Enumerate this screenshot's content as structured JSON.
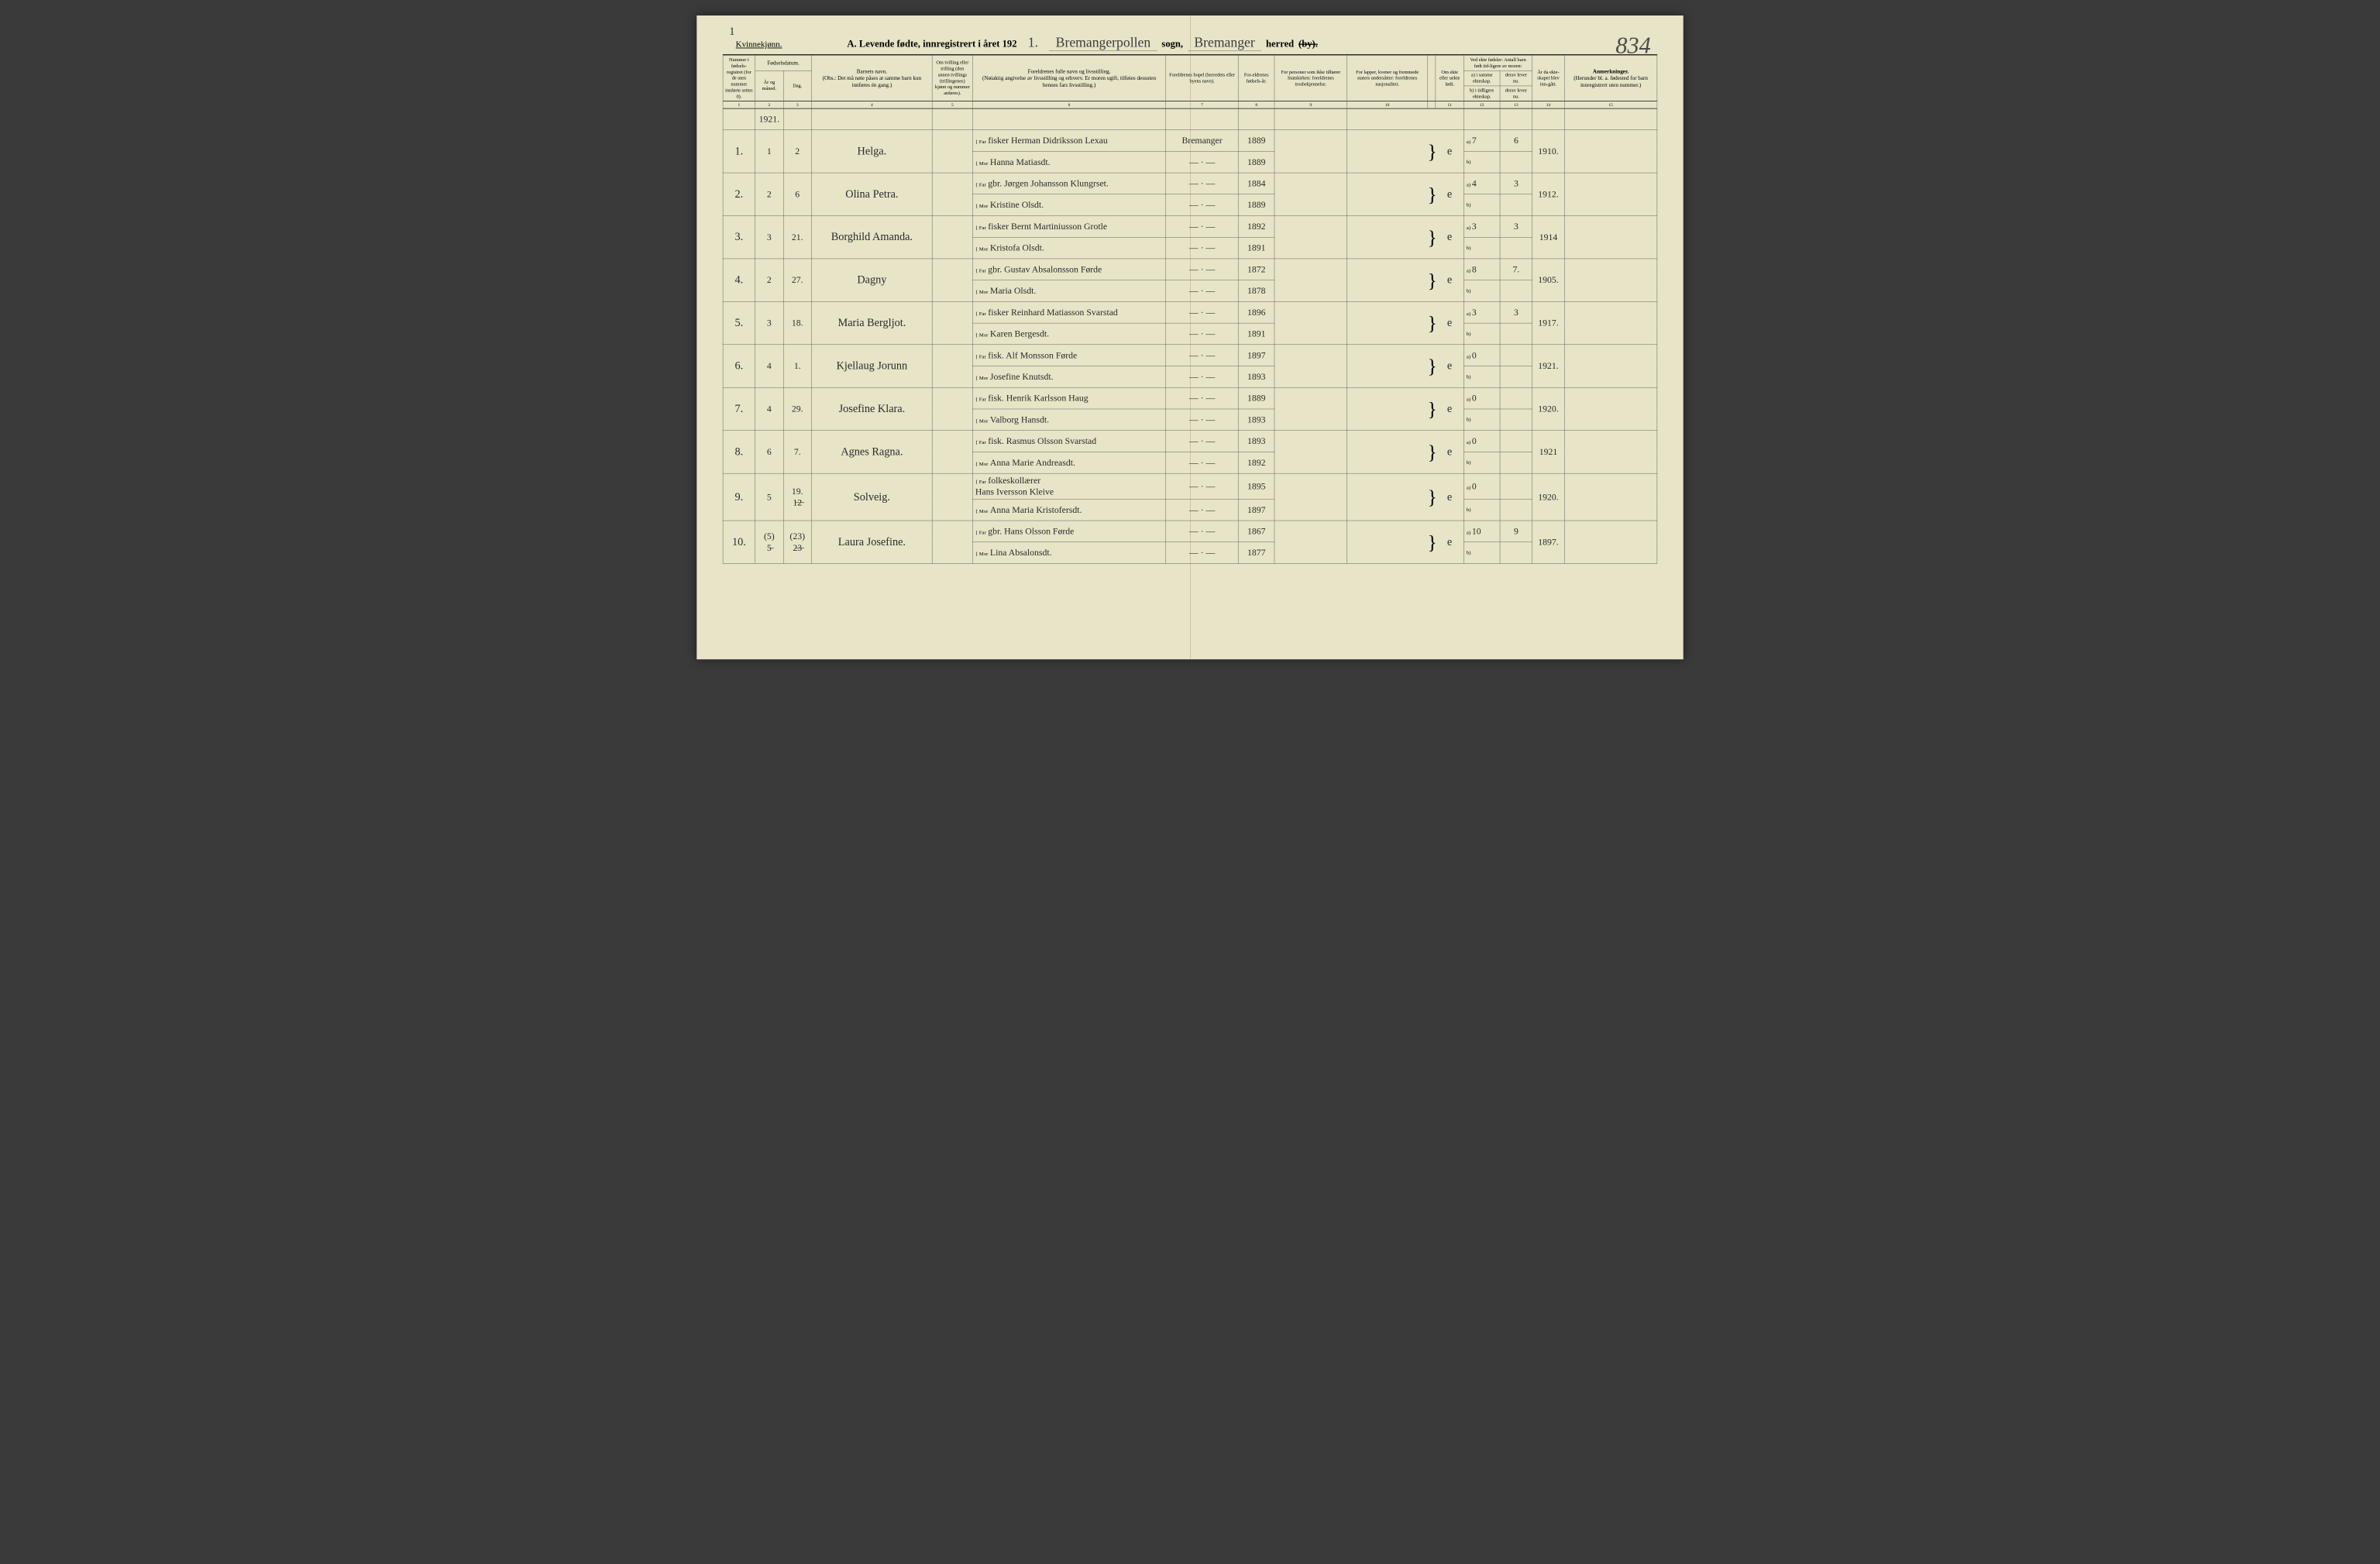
{
  "page_number_top_left": "1",
  "page_number_top_right": "834",
  "gender_label": "Kvinnekjønn.",
  "title_prefix": "A.  Levende  fødte,  innregistrert  i  året  192",
  "year_suffix_hw": "1.",
  "parish_hw": "Bremangerpollen",
  "parish_label": "sogn,",
  "district_hw": "Bremanger",
  "district_label": "herred",
  "by_strike": "(by).",
  "columns": {
    "c1": "Nummer i fødsels-registret (for de uten nummer innførte settes 0).",
    "c23": "Fødselsdatum.",
    "c2": "År og måned.",
    "c3": "Dag.",
    "c4": "Barnets navn.",
    "c4_note": "(Obs.: Det må nøie påses at samme barn kun innføres én gang.)",
    "c5": "Om tvilling eller trilling (den annen tvillings (trillingenes) kjønn og nummer anføres).",
    "c6": "Foreldrenes fulle navn og livsstilling.",
    "c6_note": "(Nøiaktig angivelse av livsstilling og erhverv. Er moren ugift, tilføies dessuten hennes fars livsstilling.)",
    "c7": "Foreldrenes bopel (herredets eller byens navn).",
    "c8": "For-eldrenes fødsels-år.",
    "c9": "For personer som ikke tilhører Statskirken: foreldrenes trosbekjennelse.",
    "c10": "For lapper, kvener og fremmede staters undersåtter: foreldrenes nasjonalitet.",
    "c11": "Om ekte eller uekte født.",
    "c1213_top": "Ved ekte fødsler: Antall barn født tid-ligere av moren:",
    "c12a": "a) i samme ekteskap.",
    "c12b": "b) i tidligere ekteskap.",
    "c13a": "derav lever nu.",
    "c13b": "derav lever nu.",
    "c14": "År da ekte-skapet blev inn-gått.",
    "c15": "Anmerkninger.",
    "c15_note": "(Herunder bl. a. fødested for barn innregistrert uten nummer.)"
  },
  "colnums": [
    "1",
    "2",
    "3",
    "4",
    "5",
    "6",
    "7",
    "8",
    "9",
    "10",
    "11",
    "12",
    "13",
    "14",
    "15"
  ],
  "year_header_hw": "1921.",
  "rows": [
    {
      "num": "1.",
      "month": "1",
      "day": "2",
      "name": "Helga.",
      "far": "fisker Herman Didriksson Lexau",
      "mor": "Hanna Matiasdt.",
      "bopel": "Bremanger",
      "yr_far": "1889",
      "yr_mor": "1889",
      "ekte": "e",
      "a": "7",
      "derav": "6",
      "marr": "1910."
    },
    {
      "num": "2.",
      "month": "2",
      "day": "6",
      "name": "Olina Petra.",
      "far": "gbr. Jørgen Johansson Klungrset.",
      "mor": "Kristine Olsdt.",
      "bopel": "— · —",
      "yr_far": "1884",
      "yr_mor": "1889",
      "ekte": "e",
      "a": "4",
      "derav": "3",
      "marr": "1912."
    },
    {
      "num": "3.",
      "month": "3",
      "day": "21.",
      "name": "Borghild Amanda.",
      "far": "fisker Bernt Martiniusson Grotle",
      "mor": "Kristofa Olsdt.",
      "bopel": "— · —",
      "yr_far": "1892",
      "yr_mor": "1891",
      "ekte": "e",
      "a": "3",
      "derav": "3",
      "marr": "1914"
    },
    {
      "num": "4.",
      "month": "2",
      "day": "27.",
      "name": "Dagny",
      "far": "gbr. Gustav Absalonsson Førde",
      "mor": "Maria Olsdt.",
      "bopel": "— · —",
      "yr_far": "1872",
      "yr_mor": "1878",
      "ekte": "e",
      "a": "8",
      "derav": "7.",
      "marr": "1905."
    },
    {
      "num": "5.",
      "month": "3",
      "day": "18.",
      "name": "Maria Bergljot.",
      "far": "fisker Reinhard Matiasson Svarstad",
      "mor": "Karen Bergesdt.",
      "bopel": "— · —",
      "yr_far": "1896",
      "yr_mor": "1891",
      "ekte": "e",
      "a": "3",
      "derav": "3",
      "marr": "1917."
    },
    {
      "num": "6.",
      "month": "4",
      "day": "1.",
      "name": "Kjellaug Jorunn",
      "far": "fisk. Alf Monsson Førde",
      "mor": "Josefine Knutsdt.",
      "bopel": "— · —",
      "yr_far": "1897",
      "yr_mor": "1893",
      "ekte": "e",
      "a": "0",
      "derav": "",
      "marr": "1921."
    },
    {
      "num": "7.",
      "month": "4",
      "day": "29.",
      "name": "Josefine Klara.",
      "far": "fisk. Henrik Karlsson Haug",
      "mor": "Valborg Hansdt.",
      "bopel": "— · —",
      "yr_far": "1889",
      "yr_mor": "1893",
      "ekte": "e",
      "a": "0",
      "derav": "",
      "marr": "1920."
    },
    {
      "num": "8.",
      "month": "6",
      "day": "7.",
      "name": "Agnes Ragna.",
      "far": "fisk. Rasmus Olsson Svarstad",
      "mor": "Anna Marie Andreasdt.",
      "bopel": "— · —",
      "yr_far": "1893",
      "yr_mor": "1892",
      "ekte": "e",
      "a": "0",
      "derav": "",
      "marr": "1921"
    },
    {
      "num": "9.",
      "month": "5",
      "day": "19.\n1̶2̶",
      "name": "Solveig.",
      "far": "folkeskollærer\nHans Iversson Kleive",
      "mor": "Anna Maria Kristofersdt.",
      "bopel": "— · —",
      "yr_far": "1895",
      "yr_mor": "1897",
      "ekte": "e",
      "a": "0",
      "derav": "",
      "marr": "1920."
    },
    {
      "num": "10.",
      "month": "(5)\n5̶",
      "day": "(23)\n2̶3̶",
      "name": "Laura Josefine.",
      "far": "gbr. Hans Olsson Førde",
      "mor": "Lina Absalonsdt.",
      "bopel": "— · —",
      "yr_far": "1867",
      "yr_mor": "1877",
      "ekte": "e",
      "a": "10",
      "derav": "9",
      "marr": "1897."
    }
  ]
}
